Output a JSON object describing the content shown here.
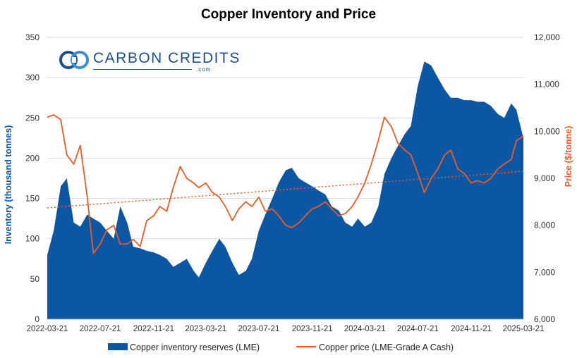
{
  "logo": {
    "name": "CARBON CREDITS",
    "sub": ".com"
  },
  "chart_data": {
    "type": "area",
    "title": "Copper Inventory and Price",
    "ylabel_left": "Inventory (thousand tonnes)",
    "ylabel_right": "Price ($/tonne)",
    "ylim_left": [
      0,
      350
    ],
    "ylim_right": [
      6000,
      12000
    ],
    "left_ticks": [
      "0",
      "50",
      "100",
      "150",
      "200",
      "250",
      "300",
      "350"
    ],
    "right_ticks": [
      "6,000",
      "7,000",
      "8,000",
      "9,000",
      "10,000",
      "11,000",
      "12,000"
    ],
    "x_ticks": [
      "2022-03-21",
      "2022-07-21",
      "2022-11-21",
      "2023-03-21",
      "2023-07-21",
      "2023-11-21",
      "2024-03-21",
      "2024-07-21",
      "2024-11-21",
      "2025-03-21"
    ],
    "grid": true,
    "legend_position": "bottom",
    "colors": {
      "inventory": "#0b57a4",
      "price": "#f05a22",
      "grid": "#d9d9d9"
    },
    "series": [
      {
        "name": "Copper inventory reserves (LME)",
        "type": "area",
        "axis": "left",
        "x": [
          "2022-03-21",
          "2022-04-05",
          "2022-04-21",
          "2022-05-05",
          "2022-05-21",
          "2022-06-05",
          "2022-06-21",
          "2022-07-05",
          "2022-07-21",
          "2022-08-05",
          "2022-08-21",
          "2022-09-05",
          "2022-09-21",
          "2022-10-05",
          "2022-10-21",
          "2022-11-05",
          "2022-11-21",
          "2022-12-05",
          "2022-12-21",
          "2023-01-05",
          "2023-01-21",
          "2023-02-05",
          "2023-02-21",
          "2023-03-05",
          "2023-03-21",
          "2023-04-05",
          "2023-04-21",
          "2023-05-05",
          "2023-05-21",
          "2023-06-05",
          "2023-06-21",
          "2023-07-05",
          "2023-07-21",
          "2023-08-05",
          "2023-08-21",
          "2023-09-05",
          "2023-09-21",
          "2023-10-05",
          "2023-10-21",
          "2023-11-05",
          "2023-11-21",
          "2023-12-05",
          "2023-12-21",
          "2024-01-05",
          "2024-01-21",
          "2024-02-05",
          "2024-02-21",
          "2024-03-05",
          "2024-03-21",
          "2024-04-05",
          "2024-04-21",
          "2024-05-05",
          "2024-05-21",
          "2024-06-05",
          "2024-06-21",
          "2024-07-05",
          "2024-07-21",
          "2024-08-05",
          "2024-08-21",
          "2024-09-05",
          "2024-09-21",
          "2024-10-05",
          "2024-10-21",
          "2024-11-05",
          "2024-11-21",
          "2024-12-05",
          "2024-12-21",
          "2025-01-05",
          "2025-01-21",
          "2025-02-05",
          "2025-02-21",
          "2025-03-05",
          "2025-03-21"
        ],
        "values": [
          80,
          110,
          165,
          175,
          120,
          115,
          130,
          125,
          120,
          110,
          100,
          140,
          120,
          90,
          88,
          85,
          83,
          80,
          75,
          65,
          70,
          75,
          60,
          52,
          70,
          85,
          100,
          90,
          70,
          55,
          60,
          75,
          110,
          130,
          150,
          170,
          185,
          188,
          175,
          170,
          165,
          160,
          155,
          140,
          135,
          120,
          115,
          125,
          115,
          120,
          140,
          180,
          200,
          215,
          230,
          240,
          290,
          320,
          315,
          300,
          285,
          275,
          275,
          272,
          272,
          270,
          270,
          265,
          255,
          250,
          268,
          260,
          225
        ]
      },
      {
        "name": "Copper price (LME-Grade A Cash)",
        "type": "line",
        "axis": "right",
        "x": [
          "2022-03-21",
          "2022-04-05",
          "2022-04-21",
          "2022-05-05",
          "2022-05-21",
          "2022-06-05",
          "2022-06-21",
          "2022-07-05",
          "2022-07-21",
          "2022-08-05",
          "2022-08-21",
          "2022-09-05",
          "2022-09-21",
          "2022-10-05",
          "2022-10-21",
          "2022-11-05",
          "2022-11-21",
          "2022-12-05",
          "2022-12-21",
          "2023-01-05",
          "2023-01-21",
          "2023-02-05",
          "2023-02-21",
          "2023-03-05",
          "2023-03-21",
          "2023-04-05",
          "2023-04-21",
          "2023-05-05",
          "2023-05-21",
          "2023-06-05",
          "2023-06-21",
          "2023-07-05",
          "2023-07-21",
          "2023-08-05",
          "2023-08-21",
          "2023-09-05",
          "2023-09-21",
          "2023-10-05",
          "2023-10-21",
          "2023-11-05",
          "2023-11-21",
          "2023-12-05",
          "2023-12-21",
          "2024-01-05",
          "2024-01-21",
          "2024-02-05",
          "2024-02-21",
          "2024-03-05",
          "2024-03-21",
          "2024-04-05",
          "2024-04-21",
          "2024-05-05",
          "2024-05-21",
          "2024-06-05",
          "2024-06-21",
          "2024-07-05",
          "2024-07-21",
          "2024-08-05",
          "2024-08-21",
          "2024-09-05",
          "2024-09-21",
          "2024-10-05",
          "2024-10-21",
          "2024-11-05",
          "2024-11-21",
          "2024-12-05",
          "2024-12-21",
          "2025-01-05",
          "2025-01-21",
          "2025-02-05",
          "2025-02-21",
          "2025-03-05",
          "2025-03-21"
        ],
        "values": [
          10300,
          10350,
          10250,
          9500,
          9300,
          9700,
          8600,
          7400,
          7600,
          7900,
          8000,
          7600,
          7600,
          7700,
          7550,
          8100,
          8200,
          8400,
          8300,
          8800,
          9250,
          9000,
          8900,
          8800,
          8900,
          8700,
          8600,
          8400,
          8100,
          8350,
          8500,
          8400,
          8600,
          8300,
          8350,
          8200,
          8000,
          7950,
          8050,
          8200,
          8350,
          8400,
          8500,
          8350,
          8200,
          8250,
          8400,
          8600,
          8900,
          9300,
          9800,
          10300,
          10100,
          9750,
          9600,
          9500,
          9100,
          8700,
          9000,
          9200,
          9500,
          9600,
          9200,
          9100,
          8900,
          8950,
          8900,
          9000,
          9200,
          9300,
          9400,
          9800,
          9900
        ]
      },
      {
        "name": "",
        "type": "trend",
        "axis": "right",
        "x": [
          "2022-03-21",
          "2025-03-21"
        ],
        "values": [
          8370,
          9150
        ]
      }
    ]
  }
}
